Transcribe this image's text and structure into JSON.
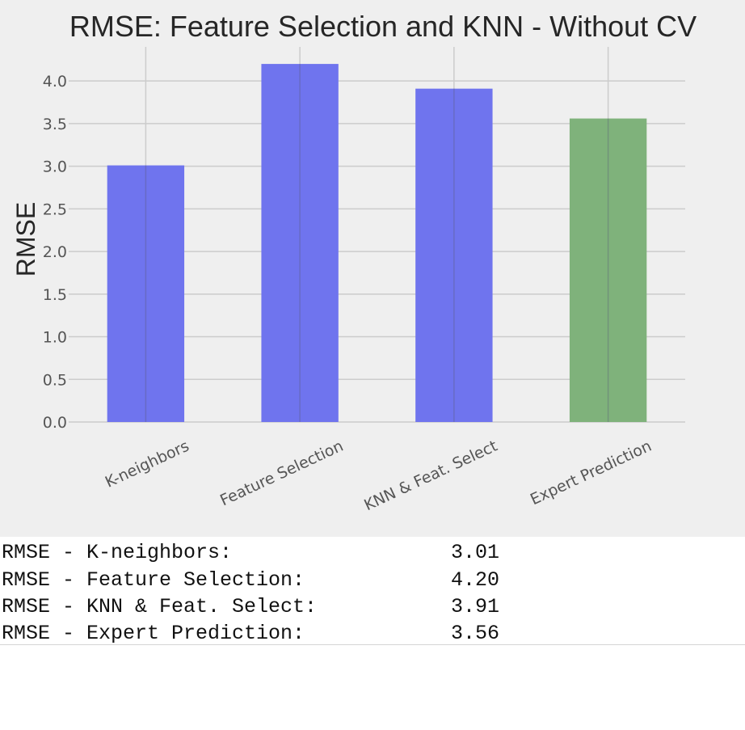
{
  "chart_data": {
    "type": "bar",
    "title": "RMSE: Feature Selection and KNN - Without CV",
    "xlabel": "",
    "ylabel": "RMSE",
    "categories": [
      "K-neighbors",
      "Feature Selection",
      "KNN & Feat. Select",
      "Expert Prediction"
    ],
    "values": [
      3.01,
      4.2,
      3.91,
      3.56
    ],
    "bar_colors": [
      "#6f74ee",
      "#6f74ee",
      "#6f74ee",
      "#7fb27b"
    ],
    "yticks": [
      "0.0",
      "0.5",
      "1.0",
      "1.5",
      "2.0",
      "2.5",
      "3.0",
      "3.5",
      "4.0"
    ],
    "ylim": [
      0,
      4.4
    ],
    "grid": true,
    "background_color": "#efefef",
    "grid_color": "#cccccc"
  },
  "output": {
    "rows": [
      {
        "label": "RMSE - K-neighbors:",
        "value": "3.01"
      },
      {
        "label": "RMSE - Feature Selection:",
        "value": "4.20"
      },
      {
        "label": "RMSE - KNN & Feat. Select:",
        "value": "3.91"
      },
      {
        "label": "RMSE - Expert Prediction:",
        "value": "3.56"
      }
    ]
  }
}
